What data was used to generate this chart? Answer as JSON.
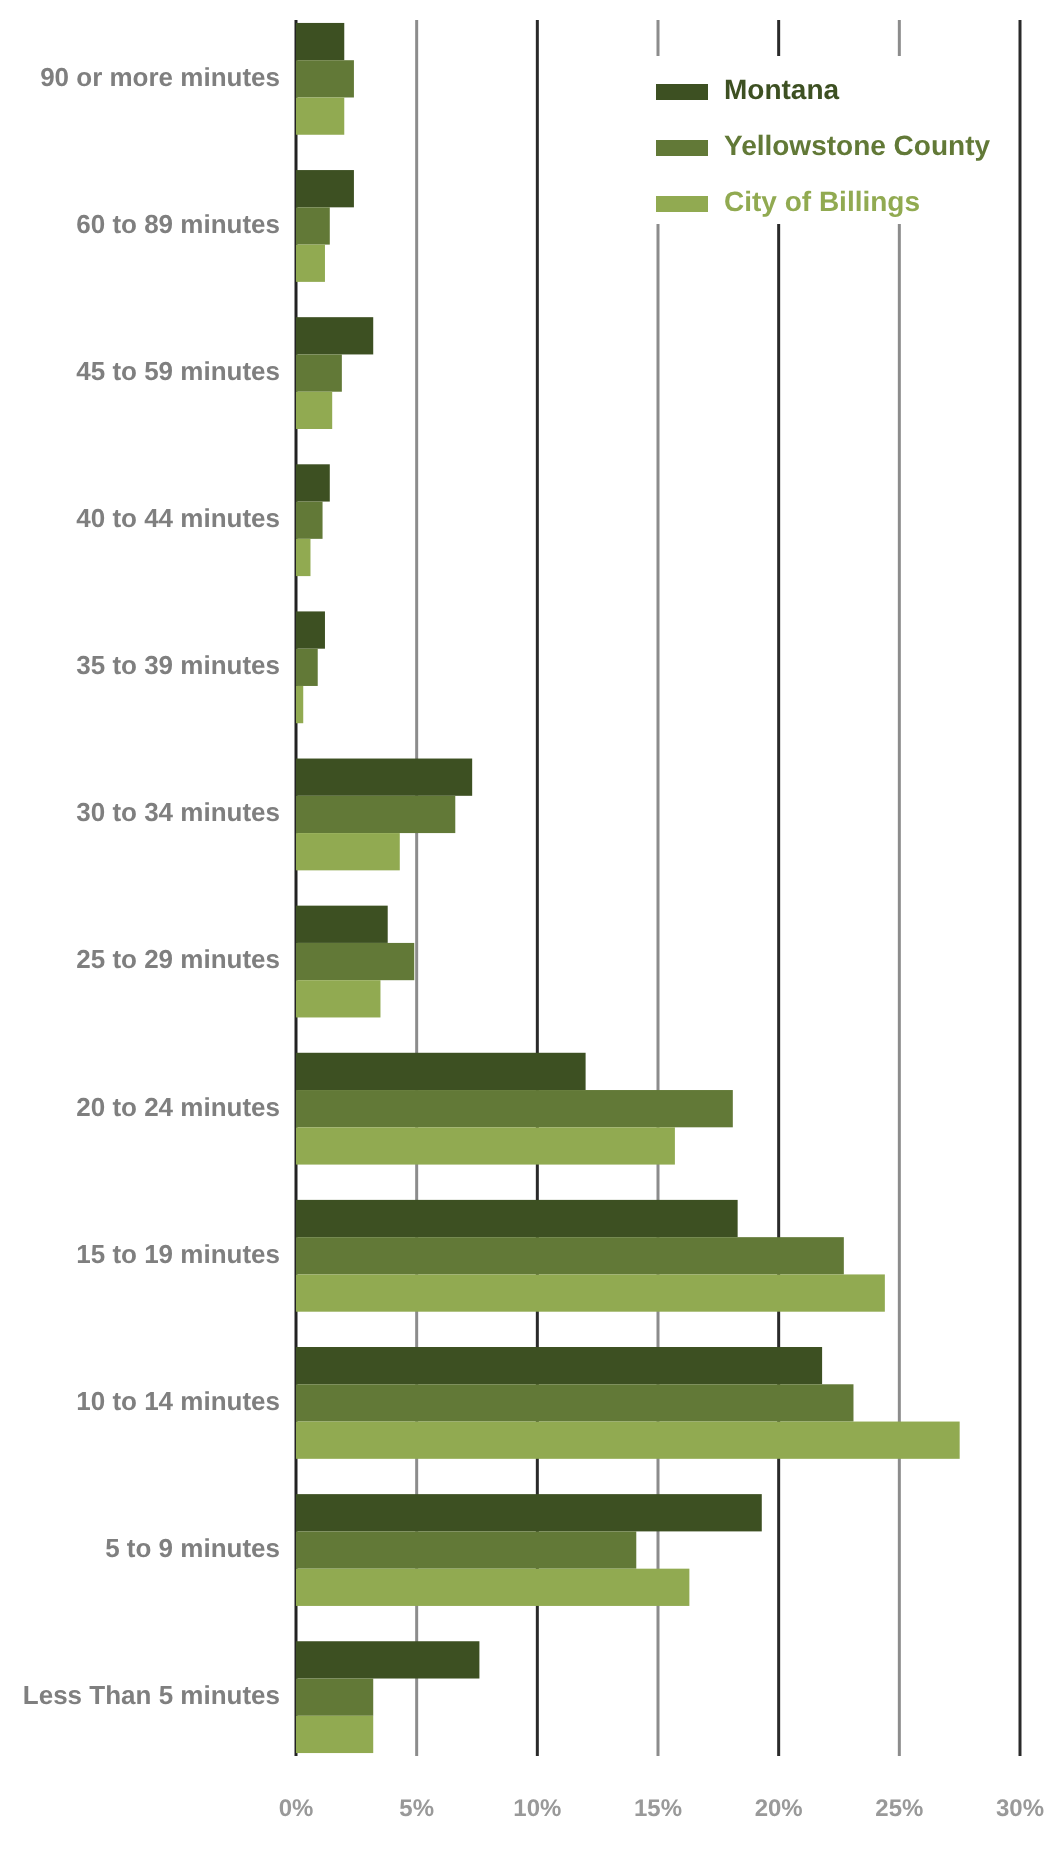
{
  "chart_data": {
    "type": "bar",
    "orientation": "horizontal",
    "categories": [
      "90 or more minutes",
      "60 to 89 minutes",
      "45 to 59 minutes",
      "40 to 44 minutes",
      "35 to 39 minutes",
      "30 to 34 minutes",
      "25 to 29 minutes",
      "20 to 24 minutes",
      "15 to 19 minutes",
      "10 to 14 minutes",
      "5 to 9 minutes",
      "Less Than 5 minutes"
    ],
    "series": [
      {
        "name": "Montana",
        "color": "#3d5022",
        "values": [
          2.0,
          2.4,
          3.2,
          1.4,
          1.2,
          7.3,
          3.8,
          12.0,
          18.3,
          21.8,
          19.3,
          7.6
        ]
      },
      {
        "name": "Yellowstone County",
        "color": "#627937",
        "values": [
          2.4,
          1.4,
          1.9,
          1.1,
          0.9,
          6.6,
          4.9,
          18.1,
          22.7,
          23.1,
          14.1,
          3.2
        ]
      },
      {
        "name": "City of Billings",
        "color": "#91aa51",
        "values": [
          2.0,
          1.2,
          1.5,
          0.6,
          0.3,
          4.3,
          3.5,
          15.7,
          24.4,
          27.5,
          16.3,
          3.2
        ]
      }
    ],
    "xlim": [
      0,
      30
    ],
    "xticks": [
      {
        "value": 0,
        "label": "0%"
      },
      {
        "value": 5,
        "label": "5%"
      },
      {
        "value": 10,
        "label": "10%"
      },
      {
        "value": 15,
        "label": "15%"
      },
      {
        "value": 20,
        "label": "20%"
      },
      {
        "value": 25,
        "label": "25%"
      },
      {
        "value": 30,
        "label": "30%"
      }
    ],
    "grid": "x",
    "legend": "top right"
  }
}
